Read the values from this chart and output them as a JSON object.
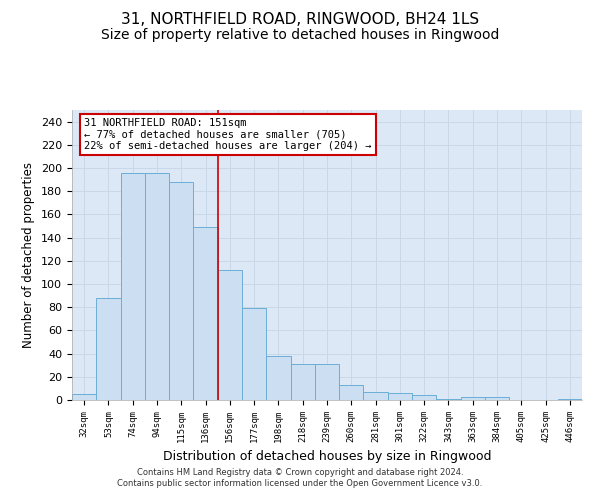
{
  "title": "31, NORTHFIELD ROAD, RINGWOOD, BH24 1LS",
  "subtitle": "Size of property relative to detached houses in Ringwood",
  "xlabel": "Distribution of detached houses by size in Ringwood",
  "ylabel": "Number of detached properties",
  "categories": [
    "32sqm",
    "53sqm",
    "74sqm",
    "94sqm",
    "115sqm",
    "136sqm",
    "156sqm",
    "177sqm",
    "198sqm",
    "218sqm",
    "239sqm",
    "260sqm",
    "281sqm",
    "301sqm",
    "322sqm",
    "343sqm",
    "363sqm",
    "384sqm",
    "405sqm",
    "425sqm",
    "446sqm"
  ],
  "values": [
    5,
    88,
    196,
    196,
    188,
    149,
    112,
    79,
    38,
    31,
    31,
    13,
    7,
    6,
    4,
    1,
    3,
    3,
    0,
    0,
    1
  ],
  "bar_color": "#ccdff2",
  "bar_edge_color": "#6aaed6",
  "highlight_line_index": 5.5,
  "annotation_line1": "31 NORTHFIELD ROAD: 151sqm",
  "annotation_line2": "← 77% of detached houses are smaller (705)",
  "annotation_line3": "22% of semi-detached houses are larger (204) →",
  "annotation_box_color": "#ffffff",
  "annotation_box_edge_color": "#cc0000",
  "ylim": [
    0,
    250
  ],
  "yticks": [
    0,
    20,
    40,
    60,
    80,
    100,
    120,
    140,
    160,
    180,
    200,
    220,
    240
  ],
  "grid_color": "#c8d8e8",
  "background_color": "#dce8f5",
  "footer_line1": "Contains HM Land Registry data © Crown copyright and database right 2024.",
  "footer_line2": "Contains public sector information licensed under the Open Government Licence v3.0.",
  "title_fontsize": 11,
  "subtitle_fontsize": 10,
  "xlabel_fontsize": 9,
  "ylabel_fontsize": 8.5
}
